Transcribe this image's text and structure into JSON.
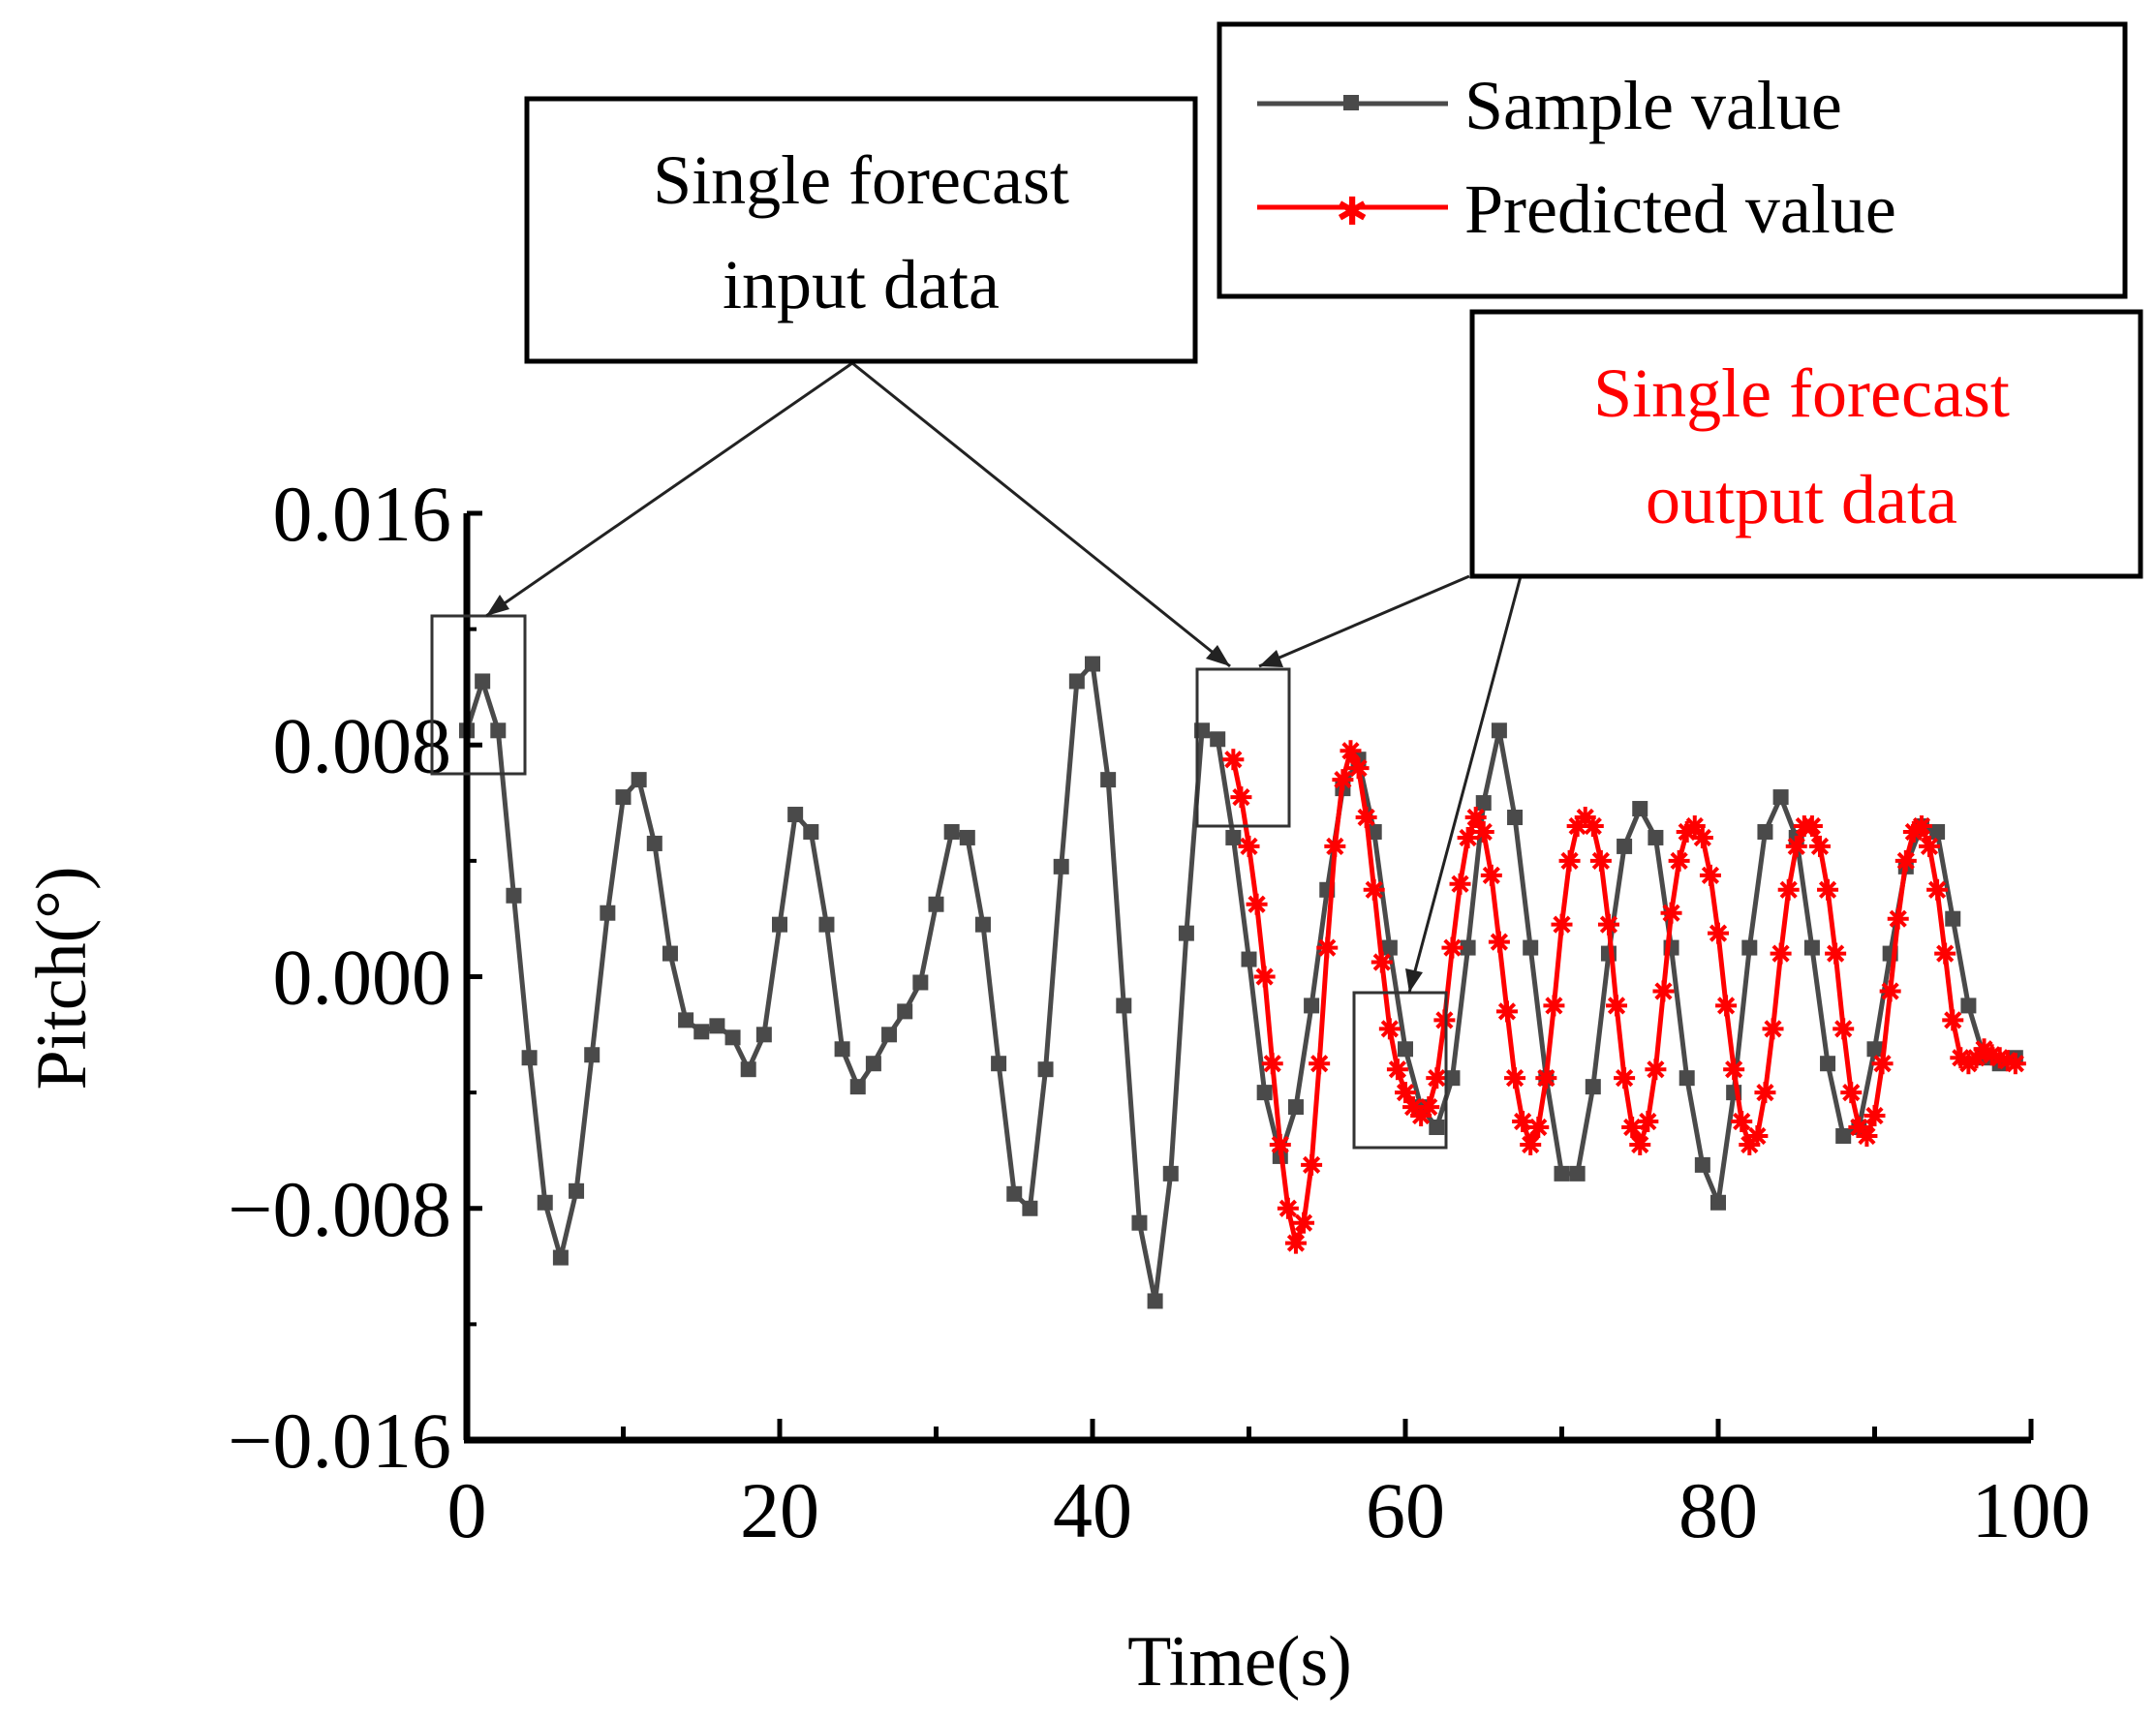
{
  "chart_data": {
    "type": "line",
    "xlabel": "Time(s)",
    "ylabel": "Pitch(°)",
    "xlim": [
      0,
      100
    ],
    "ylim": [
      -0.016,
      0.016
    ],
    "x_ticks": [
      "0",
      "20",
      "40",
      "60",
      "80",
      "100"
    ],
    "y_ticks": [
      "0.016",
      "0.008",
      "0.000",
      "−0.008",
      "−0.016"
    ],
    "legend": {
      "position": "top-right",
      "entries": [
        "Sample value",
        "Predicted value"
      ]
    },
    "colors": {
      "sample": "#4a4a4a",
      "predicted": "#ff0000",
      "axis": "#000000"
    },
    "series": [
      {
        "name": "Sample value",
        "marker": "square",
        "x": [
          0,
          1,
          2,
          3,
          4,
          5,
          6,
          7,
          8,
          9,
          10,
          11,
          12,
          13,
          14,
          15,
          16,
          17,
          18,
          19,
          20,
          21,
          22,
          23,
          24,
          25,
          26,
          27,
          28,
          29,
          30,
          31,
          32,
          33,
          34,
          35,
          36,
          37,
          38,
          39,
          40,
          41,
          42,
          43,
          44,
          45,
          46,
          47,
          48,
          49,
          50,
          51,
          52,
          53,
          54,
          55,
          56,
          57,
          58,
          59,
          60,
          61,
          62,
          63,
          64,
          65,
          66,
          67,
          68,
          69,
          70,
          71,
          72,
          73,
          74,
          75,
          76,
          77,
          78,
          79,
          80,
          81,
          82,
          83,
          84,
          85,
          86,
          87,
          88,
          89,
          90,
          91,
          92,
          93,
          94,
          95,
          96,
          97,
          98,
          99
        ],
        "y": [
          0.0085,
          0.0102,
          0.0085,
          0.0028,
          -0.0028,
          -0.0078,
          -0.0097,
          -0.0074,
          -0.0027,
          0.0022,
          0.0062,
          0.0068,
          0.0046,
          0.0008,
          -0.0015,
          -0.0019,
          -0.0017,
          -0.0021,
          -0.0032,
          -0.002,
          0.0018,
          0.0056,
          0.005,
          0.0018,
          -0.0025,
          -0.0038,
          -0.003,
          -0.002,
          -0.0012,
          -0.0002,
          0.0025,
          0.005,
          0.0048,
          0.0018,
          -0.003,
          -0.0075,
          -0.008,
          -0.0032,
          0.0038,
          0.0102,
          0.0108,
          0.0068,
          -0.001,
          -0.0085,
          -0.0112,
          -0.0068,
          0.0015,
          0.0085,
          0.0082,
          0.0048,
          0.0006,
          -0.004,
          -0.0062,
          -0.0045,
          -0.001,
          0.003,
          0.0065,
          0.0075,
          0.005,
          0.001,
          -0.0025,
          -0.0045,
          -0.0052,
          -0.0035,
          0.001,
          0.006,
          0.0085,
          0.0055,
          0.001,
          -0.0035,
          -0.0068,
          -0.0068,
          -0.0038,
          0.0008,
          0.0045,
          0.0058,
          0.0048,
          0.001,
          -0.0035,
          -0.0065,
          -0.0078,
          -0.004,
          0.001,
          0.005,
          0.0062,
          0.0048,
          0.001,
          -0.003,
          -0.0055,
          -0.0052,
          -0.0025,
          0.0008,
          0.0038,
          0.0052,
          0.005,
          0.002,
          -0.001,
          -0.0028,
          -0.003,
          -0.0028
        ]
      },
      {
        "name": "Predicted value",
        "marker": "star",
        "x": [
          49,
          49.5,
          50,
          50.5,
          51,
          51.5,
          52,
          52.5,
          53,
          53.5,
          54,
          54.5,
          55,
          55.5,
          56,
          56.5,
          57,
          57.5,
          58,
          58.5,
          59,
          59.5,
          60,
          60.5,
          61,
          61.5,
          62,
          62.5,
          63,
          63.5,
          64,
          64.5,
          65,
          65.5,
          66,
          66.5,
          67,
          67.5,
          68,
          68.5,
          69,
          69.5,
          70,
          70.5,
          71,
          71.5,
          72,
          72.5,
          73,
          73.5,
          74,
          74.5,
          75,
          75.5,
          76,
          76.5,
          77,
          77.5,
          78,
          78.5,
          79,
          79.5,
          80,
          80.5,
          81,
          81.5,
          82,
          82.5,
          83,
          83.5,
          84,
          84.5,
          85,
          85.5,
          86,
          86.5,
          87,
          87.5,
          88,
          88.5,
          89,
          89.5,
          90,
          90.5,
          91,
          91.5,
          92,
          92.5,
          93,
          93.5,
          94,
          94.5,
          95,
          95.5,
          96,
          96.5,
          97,
          97.5,
          98,
          98.5,
          99
        ],
        "y": [
          0.0075,
          0.0062,
          0.0045,
          0.0025,
          0.0,
          -0.003,
          -0.0058,
          -0.008,
          -0.0092,
          -0.0085,
          -0.0065,
          -0.003,
          0.001,
          0.0045,
          0.0068,
          0.0078,
          0.0072,
          0.0055,
          0.003,
          0.0005,
          -0.0018,
          -0.0032,
          -0.004,
          -0.0045,
          -0.0048,
          -0.0045,
          -0.0035,
          -0.0015,
          0.001,
          0.0032,
          0.0048,
          0.0055,
          0.005,
          0.0035,
          0.0012,
          -0.0012,
          -0.0035,
          -0.005,
          -0.0058,
          -0.0052,
          -0.0035,
          -0.001,
          0.0018,
          0.004,
          0.0052,
          0.0055,
          0.0052,
          0.004,
          0.0018,
          -0.001,
          -0.0035,
          -0.0052,
          -0.0058,
          -0.005,
          -0.0032,
          -0.0005,
          0.0022,
          0.004,
          0.005,
          0.0052,
          0.0048,
          0.0035,
          0.0015,
          -0.001,
          -0.0032,
          -0.005,
          -0.0058,
          -0.0055,
          -0.004,
          -0.0018,
          0.0008,
          0.003,
          0.0045,
          0.0052,
          0.0052,
          0.0045,
          0.003,
          0.0008,
          -0.0018,
          -0.004,
          -0.0052,
          -0.0055,
          -0.0048,
          -0.003,
          -0.0005,
          0.002,
          0.004,
          0.005,
          0.0052,
          0.0045,
          0.003,
          0.0008,
          -0.0015,
          -0.0028,
          -0.003,
          -0.0028,
          -0.0025,
          -0.0027,
          -0.0028,
          -0.0029,
          -0.003
        ]
      }
    ],
    "annotations": [
      {
        "text": [
          "Single forecast",
          "input data"
        ],
        "color": "#000000",
        "highlights": [
          {
            "x": [
              -1,
              5
            ],
            "y": [
              0.007,
              0.0127
            ]
          },
          {
            "x": [
              47,
              53
            ],
            "y": [
              0.0051,
              0.0108
            ]
          }
        ]
      },
      {
        "text": [
          "Single forecast",
          "output data"
        ],
        "color": "#ff0000",
        "highlights": [
          {
            "x": [
              57,
              63
            ],
            "y": [
              -0.006,
              -0.0006
            ]
          }
        ]
      }
    ]
  }
}
